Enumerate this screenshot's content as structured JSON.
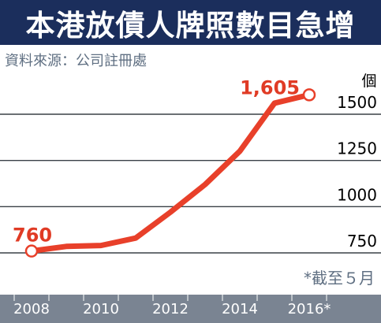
{
  "title": "本港放債人牌照數目急增",
  "source": "資料來源：公司註冊處",
  "colors": {
    "title_bg": "#1b2e5c",
    "line": "#e8402a",
    "axis_band": "#7a8492",
    "grid": "#3a4047",
    "label_gray": "#5f6f82",
    "data_label": "#e03b25"
  },
  "chart_data": {
    "type": "line",
    "title": "本港放債人牌照數目急增",
    "ylabel": "個",
    "ylim": [
      650,
      1700
    ],
    "yticks": [
      750,
      1000,
      1250,
      1500
    ],
    "ytick_labels": [
      "750",
      "1000",
      "1250",
      "1500"
    ],
    "xticks": [
      2008,
      2010,
      2012,
      2014,
      2016
    ],
    "xtick_labels": [
      "2008",
      "2010",
      "2012",
      "2014",
      "2016*"
    ],
    "grid": true,
    "series": [
      {
        "x": [
          2008,
          2009,
          2010,
          2011,
          2012,
          2013,
          2014,
          2015,
          2016
        ],
        "values": [
          760,
          785,
          790,
          830,
          970,
          1120,
          1300,
          1560,
          1605
        ]
      }
    ],
    "data_labels": [
      {
        "x": 2008,
        "text": "760"
      },
      {
        "x": 2016,
        "text": "1,605"
      }
    ],
    "annotation": "*截至５月"
  }
}
